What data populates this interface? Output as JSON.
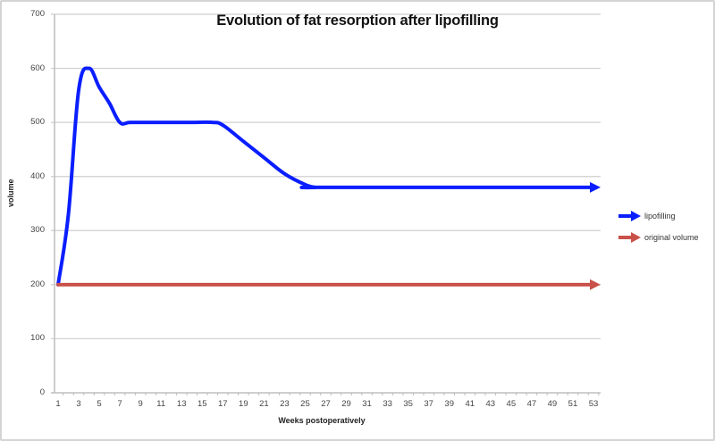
{
  "chart_data": {
    "type": "line",
    "title": "Evolution of fat resorption after lipofilling",
    "xlabel": "Weeks postoperatively",
    "ylabel": "volume",
    "ylim": [
      0,
      700
    ],
    "xlim": [
      1,
      53
    ],
    "yticks": [
      0,
      100,
      200,
      300,
      400,
      500,
      600,
      700
    ],
    "xticks": [
      1,
      3,
      5,
      7,
      9,
      11,
      13,
      15,
      17,
      19,
      21,
      23,
      25,
      27,
      29,
      31,
      33,
      35,
      37,
      39,
      41,
      43,
      45,
      47,
      49,
      51,
      53
    ],
    "grid": "horizontal",
    "legend_position": "right",
    "series": [
      {
        "name": "lipofilling",
        "color": "#0a1eff",
        "x": [
          1,
          2,
          3,
          4,
          5,
          6,
          7,
          8,
          10,
          12,
          14,
          16,
          17,
          19,
          21,
          23,
          25,
          26,
          27,
          53
        ],
        "y": [
          200,
          330,
          560,
          600,
          565,
          535,
          500,
          500,
          500,
          500,
          500,
          500,
          495,
          465,
          435,
          405,
          385,
          380,
          380,
          380
        ]
      },
      {
        "name": "original volume",
        "color": "#c9514a",
        "x": [
          1,
          53
        ],
        "y": [
          200,
          200
        ]
      }
    ]
  },
  "legend": {
    "items": [
      {
        "label": "lipofilling",
        "color": "#0a1eff"
      },
      {
        "label": "original volume",
        "color": "#c9514a"
      }
    ]
  }
}
